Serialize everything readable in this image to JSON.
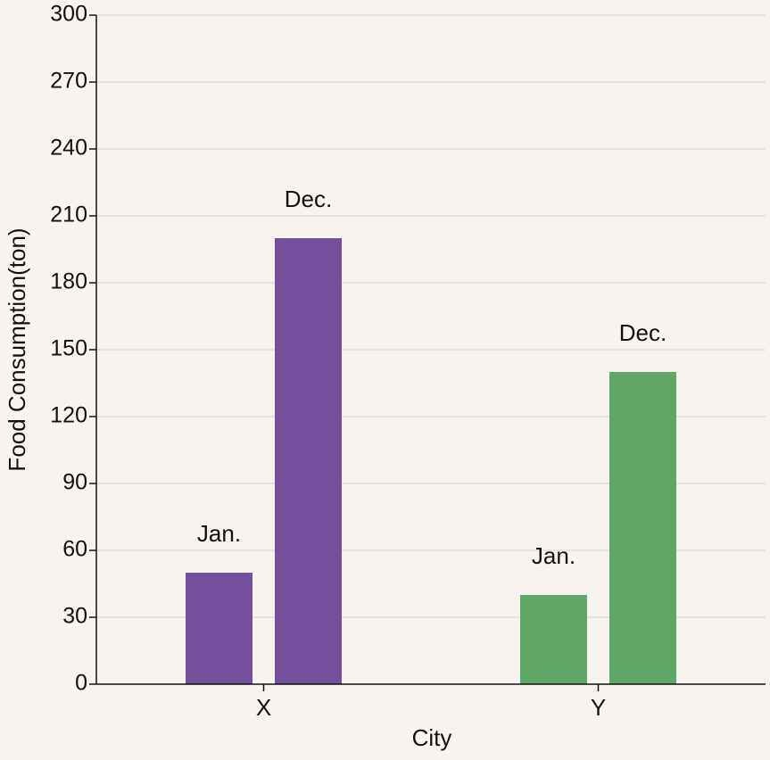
{
  "chart_data": {
    "type": "bar",
    "title": "",
    "xlabel": "City",
    "ylabel": "Food Consumption(ton)",
    "ylim": [
      0,
      300
    ],
    "yticks": [
      0,
      30,
      60,
      90,
      120,
      150,
      180,
      210,
      240,
      270,
      300
    ],
    "grid": true,
    "legend": "none",
    "categories": [
      "X",
      "Y"
    ],
    "series": [
      {
        "name": "Jan.",
        "values": [
          50,
          40
        ],
        "colors": [
          "#744f9c",
          "#60a667"
        ]
      },
      {
        "name": "Dec.",
        "values": [
          200,
          140
        ],
        "colors": [
          "#744f9c",
          "#60a667"
        ]
      }
    ]
  }
}
